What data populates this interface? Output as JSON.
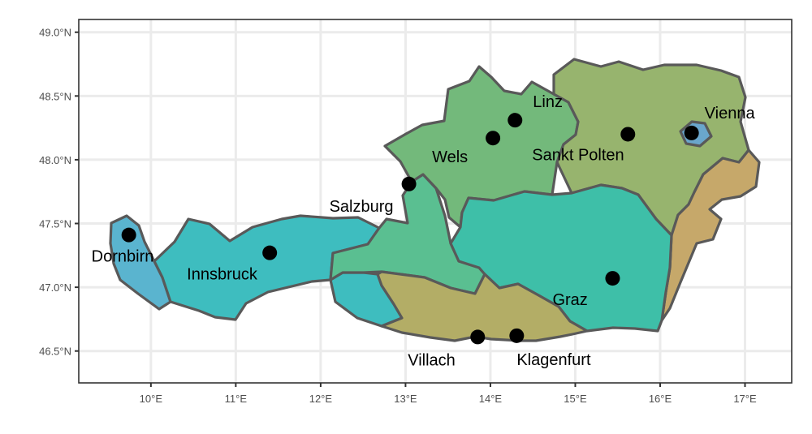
{
  "map": {
    "lon_ticks": [
      10,
      11,
      12,
      13,
      14,
      15,
      16,
      17
    ],
    "lat_ticks": [
      46.5,
      47.0,
      47.5,
      48.0,
      48.5,
      49.0
    ],
    "lon_labels": [
      "10°E",
      "11°E",
      "12°E",
      "13°E",
      "14°E",
      "15°E",
      "16°E",
      "17°E"
    ],
    "lat_labels": [
      "46.5°N",
      "47.0°N",
      "47.5°N",
      "48.0°N",
      "48.5°N",
      "49.0°N"
    ],
    "lon_range": [
      9.15,
      17.55
    ],
    "lat_range": [
      46.25,
      49.1
    ],
    "grid": true,
    "regions": [
      {
        "id": "vorarlberg",
        "color": "#5ab4cf"
      },
      {
        "id": "tirol",
        "color": "#3ebdbf"
      },
      {
        "id": "salzburg",
        "color": "#5abf91"
      },
      {
        "id": "upper-austria",
        "color": "#73b97b"
      },
      {
        "id": "lower-austria",
        "color": "#97b46e"
      },
      {
        "id": "vienna",
        "color": "#6aa6cc"
      },
      {
        "id": "burgenland",
        "color": "#c6a86a"
      },
      {
        "id": "styria",
        "color": "#3ebfa8"
      },
      {
        "id": "carinthia",
        "color": "#b3ad66"
      }
    ],
    "cities": [
      {
        "name": "Vienna",
        "lon": 16.37,
        "lat": 48.21,
        "label": "Vienna"
      },
      {
        "name": "Linz",
        "lon": 14.29,
        "lat": 48.31,
        "label": "Linz"
      },
      {
        "name": "Wels",
        "lon": 14.03,
        "lat": 48.17,
        "label": "Wels"
      },
      {
        "name": "Sankt Polten",
        "lon": 15.62,
        "lat": 48.2,
        "label": "Sankt Polten"
      },
      {
        "name": "Salzburg",
        "lon": 13.04,
        "lat": 47.81,
        "label": "Salzburg"
      },
      {
        "name": "Dornbirn",
        "lon": 9.74,
        "lat": 47.41,
        "label": "Dornbirn"
      },
      {
        "name": "Innsbruck",
        "lon": 11.4,
        "lat": 47.27,
        "label": "Innsbruck"
      },
      {
        "name": "Graz",
        "lon": 15.44,
        "lat": 47.07,
        "label": "Graz"
      },
      {
        "name": "Villach",
        "lon": 13.85,
        "lat": 46.61,
        "label": "Villach"
      },
      {
        "name": "Klagenfurt",
        "lon": 14.31,
        "lat": 46.62,
        "label": "Klagenfurt"
      }
    ]
  }
}
